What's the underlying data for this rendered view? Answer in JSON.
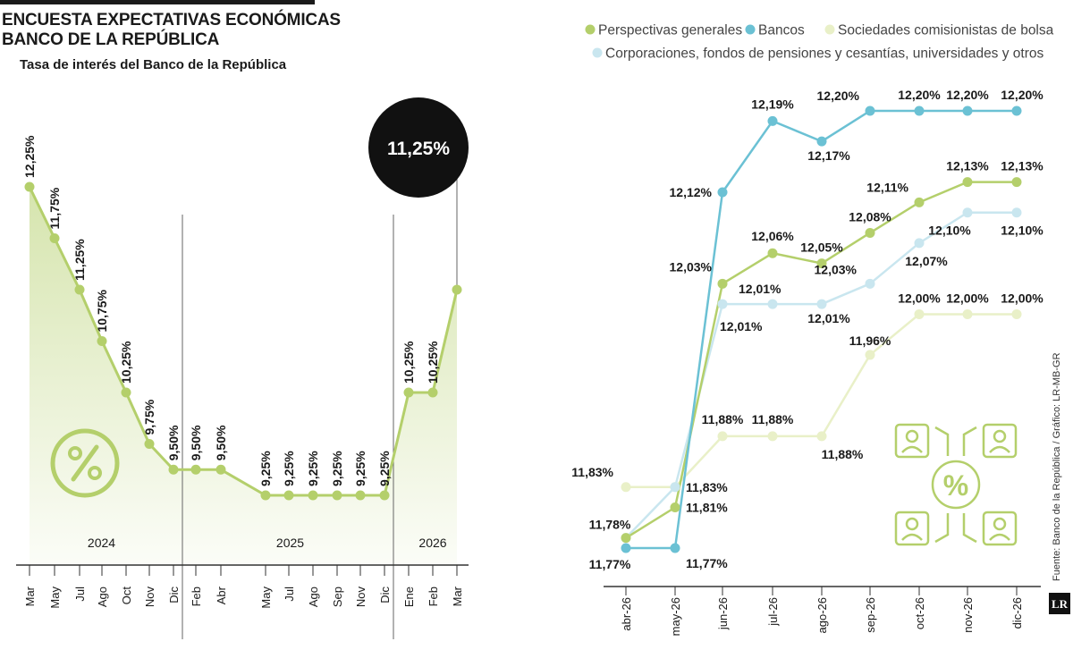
{
  "header": {
    "title_line1": "ENCUESTA EXPECTATIVAS ECONÓMICAS",
    "title_line2": "BANCO DE LA REPÚBLICA",
    "subtitle": "Tasa de interés del Banco de la República"
  },
  "source": "Fuente: Banco de la República / Gráfico: LR-MB-GR",
  "logo_text": "LR",
  "colors": {
    "green": "#b4cf6b",
    "green_light": "#e9f0c8",
    "blue": "#6bc1d4",
    "blue_light": "#c9e6ef",
    "axis": "#333333",
    "callout": "#111111"
  },
  "chart_data": [
    {
      "type": "area",
      "title": "Tasa de interés del Banco de la República",
      "x": [
        "Mar",
        "May",
        "Jul",
        "Ago",
        "Oct",
        "Nov",
        "Dic",
        "Feb",
        "Abr",
        "May",
        "Jul",
        "Ago",
        "Sep",
        "Nov",
        "Dic",
        "Ene",
        "Feb",
        "Mar"
      ],
      "years": [
        {
          "label": "2024",
          "start": 0,
          "end": 6
        },
        {
          "label": "2025",
          "start": 7,
          "end": 14
        },
        {
          "label": "2026",
          "start": 15,
          "end": 17
        }
      ],
      "values": [
        12.25,
        11.75,
        11.25,
        10.75,
        10.25,
        9.75,
        9.5,
        9.5,
        9.5,
        9.25,
        9.25,
        9.25,
        9.25,
        9.25,
        9.25,
        10.25,
        10.25,
        11.25
      ],
      "labels": [
        "12,25%",
        "11,75%",
        "11,25%",
        "10,75%",
        "10,25%",
        "9,75%",
        "9,50%",
        "9,50%",
        "9,50%",
        "9,25%",
        "9,25%",
        "9,25%",
        "9,25%",
        "9,25%",
        "9,25%",
        "10,25%",
        "10,25%",
        ""
      ],
      "callout": "11,25%",
      "ylim": [
        8.5,
        12.5
      ]
    },
    {
      "type": "line",
      "categories": [
        "abr-26",
        "may-26",
        "jun-26",
        "jul-26",
        "ago-26",
        "sep-26",
        "oct-26",
        "nov-26",
        "dic-26"
      ],
      "ylim": [
        11.75,
        12.22
      ],
      "legend_position": "top",
      "series": [
        {
          "name": "Perspectivas generales",
          "color": "#b4cf6b",
          "values": [
            11.78,
            11.81,
            12.03,
            12.06,
            12.05,
            12.08,
            12.11,
            12.13,
            12.13
          ],
          "labels": [
            "11,78%",
            "11,81%",
            "12,03%",
            "12,06%",
            "12,05%",
            "12,08%",
            "12,11%",
            "12,13%",
            "12,13%"
          ]
        },
        {
          "name": "Bancos",
          "color": "#6bc1d4",
          "values": [
            11.77,
            11.77,
            12.12,
            12.19,
            12.17,
            12.2,
            12.2,
            12.2,
            12.2
          ],
          "labels": [
            "11,77%",
            "11,77%",
            "12,12%",
            "12,19%",
            "12,17%",
            "12,20%",
            "12,20%",
            "12,20%",
            "12,20%"
          ]
        },
        {
          "name": "Sociedades comisionistas de bolsa",
          "color": "#e9f0c8",
          "values": [
            11.83,
            11.83,
            11.88,
            11.88,
            11.88,
            11.96,
            12.0,
            12.0,
            12.0
          ],
          "labels": [
            "11,83%",
            "",
            "11,88%",
            "11,88%",
            "11,88%",
            "11,96%",
            "12,00%",
            "12,00%",
            "12,00%"
          ]
        },
        {
          "name": "Corporaciones, fondos de pensiones y cesantías, universidades y otros",
          "color": "#c9e6ef",
          "values": [
            11.78,
            11.83,
            12.01,
            12.01,
            12.01,
            12.03,
            12.07,
            12.1,
            12.1
          ],
          "labels": [
            "",
            "11,83%",
            "12,01%",
            "12,01%",
            "12,01%",
            "12,03%",
            "12,07%",
            "12,10%",
            "12,10%"
          ]
        }
      ]
    }
  ]
}
